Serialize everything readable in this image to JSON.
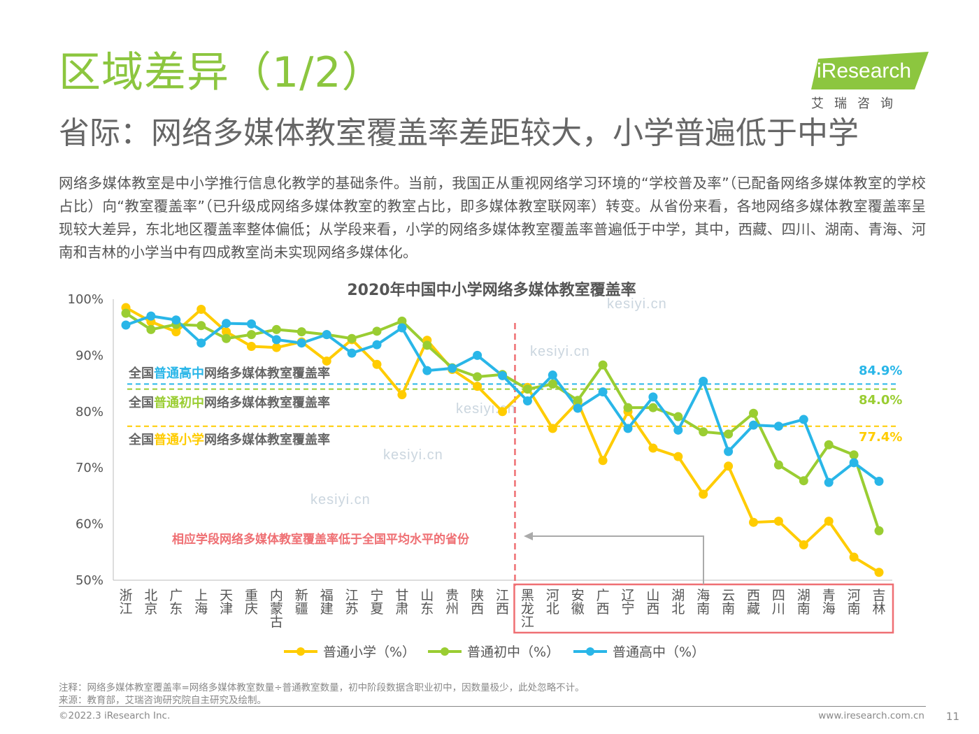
{
  "header": {
    "title": "区域差异（1/2）",
    "subtitle": "省际：网络多媒体教室覆盖率差距较大，小学普遍低于中学",
    "intro": "网络多媒体教室是中小学推行信息化教学的基础条件。当前，我国正从重视网络学习环境的“学校普及率”（已配备网络多媒体教室的学校占比）向“教室覆盖率”（已升级成网络多媒体教室的教室占比，即多媒体教室联网率）转变。从省份来看，各地网络多媒体教室覆盖率呈现较大差异，东北地区覆盖率整体偏低；从学段来看，小学的网络多媒体教室覆盖率普遍低于中学，其中，西藏、四川、湖南、青海、河南和吉林的小学当中有四成教室尚未实现网络多媒体化。"
  },
  "logo": {
    "text": "iResearch",
    "sub": "艾瑞咨询",
    "color": "#8cc63f"
  },
  "chart_data": {
    "type": "line",
    "title": "2020年中国中小学网络多媒体教室覆盖率",
    "ylim": [
      50,
      100
    ],
    "yticks": [
      "100%",
      "90%",
      "80%",
      "70%",
      "60%",
      "50%"
    ],
    "categories": [
      "浙江",
      "北京",
      "广东",
      "上海",
      "天津",
      "重庆",
      "内蒙古",
      "新疆",
      "福建",
      "江苏",
      "宁夏",
      "甘肃",
      "山东",
      "贵州",
      "陕西",
      "江西",
      "黑龙江",
      "河北",
      "安徽",
      "广西",
      "辽宁",
      "山西",
      "湖北",
      "海南",
      "云南",
      "西藏",
      "四川",
      "湖南",
      "青海",
      "河南",
      "吉林"
    ],
    "series": [
      {
        "name": "普通小学（%）",
        "color": "#ffcc00",
        "values": [
          98.5,
          96.0,
          94.2,
          98.2,
          94.2,
          91.6,
          91.4,
          92.4,
          89.0,
          92.8,
          88.4,
          83.0,
          92.7,
          87.5,
          84.5,
          80.0,
          84.3,
          77.0,
          81.7,
          71.3,
          80.0,
          73.5,
          72.0,
          65.3,
          70.3,
          60.3,
          60.5,
          56.3,
          60.5,
          54.1,
          51.4
        ]
      },
      {
        "name": "普通初中（%）",
        "color": "#9acd32",
        "values": [
          97.5,
          94.6,
          95.5,
          95.3,
          93.0,
          93.7,
          94.6,
          94.2,
          93.7,
          93.0,
          94.3,
          96.1,
          91.8,
          87.8,
          86.2,
          86.6,
          84.0,
          84.9,
          82.0,
          88.3,
          80.7,
          80.7,
          79.1,
          76.4,
          76.0,
          79.7,
          70.5,
          67.7,
          74.1,
          72.3,
          58.8
        ]
      },
      {
        "name": "普通高中（%）",
        "color": "#29b6e8",
        "values": [
          95.4,
          97.0,
          96.3,
          92.2,
          95.7,
          95.6,
          92.8,
          92.2,
          93.7,
          90.4,
          91.9,
          94.9,
          87.3,
          87.7,
          90.0,
          86.4,
          81.9,
          86.5,
          80.6,
          83.5,
          77.0,
          82.6,
          76.7,
          85.4,
          72.9,
          77.6,
          77.4,
          78.6,
          67.4,
          70.9,
          67.6
        ]
      }
    ],
    "reference_lines": [
      {
        "label_pre": "全国",
        "label_hl": "普通高中",
        "label_post": "网络多媒体教室覆盖率",
        "value": 84.9,
        "value_label": "84.9%",
        "color": "#29b6e8"
      },
      {
        "label_pre": "全国",
        "label_hl": "普通初中",
        "label_post": "网络多媒体教室覆盖率",
        "value": 84.0,
        "value_label": "84.0%",
        "color": "#9acd32"
      },
      {
        "label_pre": "全国",
        "label_hl": "普通小学",
        "label_post": "网络多媒体教室覆盖率",
        "value": 77.4,
        "value_label": "77.4%",
        "color": "#ffcc00"
      }
    ],
    "annotation": "相应学段网络多媒体教室覆盖率低于全国平均水平的省份",
    "highlight_from": "黑龙江",
    "grid": false
  },
  "colors": {
    "divider": "#ef6f73",
    "highlight_box": "#ef6f73",
    "arrow": "#aaaaaa"
  },
  "footer": {
    "note": "注释：网络多媒体教室覆盖率=网络多媒体教室数量÷普通教室数量，初中阶段数据含职业初中，因数量极少，此处忽略不计。",
    "source": "来源：教育部，艾瑞咨询研究院自主研究及绘制。",
    "copyright": "©2022.3 iResearch Inc.",
    "website": "www.iresearch.com.cn",
    "page": "11"
  },
  "watermark": "kesiyi.cn"
}
